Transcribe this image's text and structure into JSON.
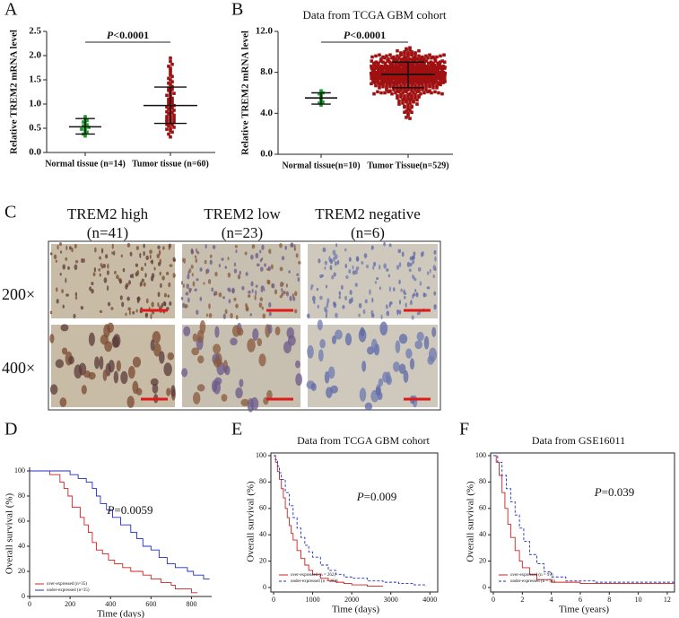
{
  "chart_data": [
    {
      "type": "dot",
      "panel_label": "A",
      "ylabel": "Relative TREM2 mRNA level",
      "categories": [
        "Normal tissue (n=14)",
        "Tumor tissue (n=60)"
      ],
      "groups": [
        {
          "color": "#1e9a2a",
          "mean": 0.53,
          "sd_range": [
            0.38,
            0.7
          ],
          "values": [
            0.34,
            0.38,
            0.42,
            0.45,
            0.48,
            0.5,
            0.52,
            0.55,
            0.57,
            0.6,
            0.63,
            0.66,
            0.7,
            0.74
          ]
        },
        {
          "color": "#a01010",
          "mean": 0.97,
          "sd_range": [
            0.6,
            1.35
          ],
          "values": [
            0.32,
            0.38,
            0.42,
            0.45,
            0.48,
            0.5,
            0.52,
            0.55,
            0.57,
            0.58,
            0.6,
            0.62,
            0.63,
            0.65,
            0.67,
            0.68,
            0.7,
            0.72,
            0.74,
            0.75,
            0.77,
            0.8,
            0.82,
            0.84,
            0.85,
            0.87,
            0.9,
            0.92,
            0.94,
            0.95,
            0.97,
            1.0,
            1.02,
            1.05,
            1.07,
            1.1,
            1.12,
            1.15,
            1.18,
            1.2,
            1.22,
            1.25,
            1.28,
            1.3,
            1.33,
            1.36,
            1.4,
            1.43,
            1.46,
            1.5,
            1.53,
            1.57,
            1.6,
            1.65,
            1.7,
            1.74,
            1.78,
            1.82,
            1.88,
            1.95
          ]
        }
      ],
      "ylim": [
        0,
        2.5
      ],
      "yticks": [
        {
          "value": 0,
          "label": "0.0"
        },
        {
          "value": 0.5,
          "label": "0.5"
        },
        {
          "value": 1,
          "label": "1.0"
        },
        {
          "value": 1.5,
          "label": "1.5"
        },
        {
          "value": 2,
          "label": "2.0"
        },
        {
          "value": 2.5,
          "label": "2.5"
        }
      ],
      "p_symbol": "P",
      "p_text": "<0.0001"
    },
    {
      "type": "dot",
      "panel_label": "B",
      "title": "Data from TCGA GBM cohort",
      "ylabel": "Relative TREM2 mRNA level",
      "categories": [
        "Normal tissue(n=10)",
        "Tumor Tissue(n=529)"
      ],
      "groups": [
        {
          "color": "#1e9a2a",
          "mean": 5.5,
          "sd_range": [
            4.9,
            6.0
          ],
          "values": [
            4.8,
            5.0,
            5.1,
            5.3,
            5.4,
            5.6,
            5.8,
            5.9,
            6.0,
            6.2
          ]
        },
        {
          "color": "#a01010",
          "mean": 7.8,
          "sd_range": [
            6.5,
            9.0
          ],
          "values": [
            7.8,
            8.2,
            6.9,
            9.1,
            7.4,
            8.6,
            5.9,
            7.1,
            8.9,
            7.6,
            8.4,
            6.5,
            9.5,
            7.9,
            8.1,
            7.2,
            6.1,
            8.8,
            7.7,
            9.3,
            7.0,
            8.3,
            5.4,
            7.5,
            9.8,
            8.0,
            6.7,
            7.3,
            8.5,
            6.3,
            9.0,
            7.8,
            4.6,
            8.7,
            7.6,
            6.8,
            9.6,
            8.2,
            7.4,
            5.7,
            8.6,
            7.1,
            9.2,
            6.6,
            8.0,
            7.9,
            10.1,
            7.3,
            6.0,
            8.4,
            7.5,
            8.9,
            6.4,
            7.7,
            8.3,
            5.2,
            9.4,
            7.0,
            8.1,
            6.9,
            8.7,
            7.2,
            9.9,
            7.6,
            6.2,
            8.5,
            7.8,
            4.1,
            8.0,
            7.4,
            6.8,
            9.1,
            7.9,
            8.2,
            5.8,
            7.3,
            8.6,
            9.7,
            7.1,
            6.5,
            8.3,
            7.0,
            8.8,
            6.0,
            9.3,
            7.6,
            8.1,
            5.5,
            7.8,
            10.3,
            7.4,
            8.5,
            6.7,
            9.0,
            7.2,
            8.0,
            4.9,
            8.7,
            7.5,
            6.3,
            9.5,
            7.9,
            8.2,
            6.6,
            7.1,
            8.9,
            5.6,
            7.7,
            9.2,
            8.4,
            6.9,
            8.6,
            7.3,
            9.8,
            7.0,
            5.0,
            8.3,
            7.6,
            6.4,
            8.8,
            7.8,
            9.1,
            6.1,
            8.0,
            7.5,
            9.6,
            7.2,
            8.5,
            3.6,
            7.9,
            8.2,
            6.8,
            9.4,
            7.4,
            8.7,
            5.3,
            7.7,
            8.1,
            6.6,
            9.0,
            7.1,
            8.4,
            10.0,
            7.6,
            6.2,
            8.9,
            7.3,
            8.0,
            5.9,
            7.8,
            9.3,
            7.0,
            8.6,
            6.5,
            7.9,
            8.3,
            4.4,
            7.5,
            9.7,
            8.1,
            6.7,
            8.8,
            7.2,
            9.1,
            7.6,
            5.7,
            8.4,
            7.0,
            8.5,
            6.9,
            8.0,
            7.4,
            9.5,
            6.3,
            8.2,
            7.8,
            10.2,
            7.1,
            5.1,
            8.6,
            7.7,
            9.0,
            6.8,
            8.3,
            7.3,
            8.9,
            6.0,
            7.9,
            9.4,
            7.5,
            8.5,
            6.4,
            7.8,
            9.2,
            7.0,
            8.1,
            5.5,
            8.7,
            7.4,
            6.7,
            9.8,
            7.6,
            8.4,
            6.1,
            7.2,
            9.0,
            7.9,
            4.7,
            8.2,
            7.3,
            6.6,
            8.7,
            7.5,
            9.3,
            8.0,
            5.8,
            7.1,
            8.6,
            9.6,
            7.7,
            8.1,
            7.0,
            8.9,
            6.5,
            7.8,
            9.1,
            4.0,
            8.3,
            7.4,
            6.8,
            7.9,
            9.4,
            6.2,
            8.5,
            7.6,
            8.0,
            5.6,
            7.2,
            10.4,
            8.8,
            7.3,
            8.2,
            6.9,
            9.7,
            7.5,
            8.4,
            6.3,
            7.8,
            5.2,
            9.0,
            8.6,
            7.1,
            9.2,
            6.7,
            8.1,
            7.7,
            4.8,
            8.9,
            7.0,
            6.4,
            9.5,
            7.4,
            8.3,
            6.0,
            7.9,
            8.7,
            7.2,
            5.4,
            9.1,
            7.6,
            6.8,
            8.5,
            7.3,
            9.9,
            8.0,
            6.1,
            7.7,
            8.4,
            3.8,
            7.5,
            8.2,
            7.0,
            9.3,
            6.6,
            8.8,
            7.6,
            5.9,
            8.1,
            9.6,
            7.1,
            7.8,
            8.6,
            6.4,
            9.0,
            7.4,
            8.3,
            5.0,
            7.9,
            8.7,
            6.9,
            9.2,
            7.5,
            8.0,
            6.2,
            7.7,
            9.4,
            7.3,
            4.5,
            8.5,
            8.1,
            6.7,
            8.9,
            7.1,
            9.7,
            7.8,
            5.7,
            8.2,
            7.4,
            6.5,
            8.6,
            8.4,
            7.2,
            9.1,
            6.8,
            8.0,
            7.6,
            10.0,
            7.0,
            5.3,
            8.3,
            7.5,
            9.3,
            6.3,
            8.7,
            7.9,
            8.1,
            6.0,
            7.3,
            9.5,
            7.7,
            8.8,
            6.6,
            7.6,
            9.0,
            7.1,
            8.4,
            5.6,
            8.2,
            7.8,
            6.1,
            9.6,
            7.4,
            8.5,
            6.4,
            7.0,
            9.2,
            7.9,
            4.2,
            8.0,
            7.2,
            6.9,
            8.3,
            7.7,
            9.4,
            8.6,
            5.9,
            7.5,
            8.1,
            9.8,
            7.3,
            8.0,
            7.1,
            8.7,
            6.7,
            7.6,
            9.0,
            4.6,
            8.4,
            7.8,
            6.5,
            7.6,
            9.5,
            6.0,
            8.2,
            7.3,
            8.8,
            5.5,
            7.0,
            10.2,
            8.5,
            7.2,
            8.0,
            6.8,
            9.6,
            7.9,
            8.3,
            6.2,
            7.7,
            5.1,
            9.1,
            8.9,
            7.3,
            9.3,
            6.5,
            8.1,
            7.4,
            4.9,
            8.6,
            7.1,
            6.3,
            9.7,
            7.8,
            8.2,
            6.1,
            7.5,
            8.5,
            7.0,
            5.8,
            9.2,
            7.6,
            6.6,
            8.4,
            7.2,
            9.8,
            8.0,
            6.0,
            7.9,
            8.7,
            3.5,
            7.4,
            8.3,
            7.1,
            9.0,
            6.9,
            8.9,
            7.7,
            5.7,
            8.1,
            9.4,
            7.0,
            7.7,
            8.6,
            6.3,
            9.1,
            7.5,
            8.2,
            5.2,
            7.8,
            8.8,
            6.7,
            9.4,
            7.6,
            8.0,
            6.4,
            7.3,
            9.5,
            7.1,
            4.3,
            8.4,
            8.2,
            6.8,
            8.7,
            7.4,
            9.9,
            7.9,
            5.4,
            8.5,
            7.2,
            6.6,
            8.9,
            8.1,
            7.5,
            9.2,
            6.2,
            8.3,
            7.8,
            10.1,
            7.0,
            5.6,
            8.0,
            7.4,
            9.0,
            6.5,
            8.6,
            7.7,
            8.4,
            6.1,
            7.6,
            9.3,
            7.9,
            8.7,
            6.9,
            7.3,
            9.5,
            7.1,
            8.2,
            5.3,
            8.8,
            7.5,
            6.0,
            9.1,
            7.7,
            8.5,
            6.7,
            7.4,
            9.6,
            7.8,
            4.1,
            8.1,
            7.2,
            6.5,
            8.3,
            7.6,
            9.2,
            8.6,
            5.9,
            7.0,
            8.0,
            9.7,
            7.8,
            8.4,
            7.3,
            9.0,
            6.8,
            7.9,
            8.5,
            4.7,
            8.2,
            7.1
          ]
        }
      ],
      "ylim": [
        0,
        12
      ],
      "yticks": [
        {
          "value": 0,
          "label": "0.0"
        },
        {
          "value": 4,
          "label": "4.0"
        },
        {
          "value": 8,
          "label": "8.0"
        },
        {
          "value": 12,
          "label": "12.0"
        }
      ],
      "p_symbol": "P",
      "p_text": "<0.0001"
    },
    {
      "type": "km",
      "panel_label": "D",
      "xlabel": "Time (days)",
      "ylabel": "Overall survival (%)",
      "frame": false,
      "p_symbol": "P",
      "p_text": "=0.0059",
      "xlim": [
        0,
        900
      ],
      "xticks": [
        0,
        200,
        400,
        600,
        800
      ],
      "ylim": [
        0,
        100
      ],
      "yticks": [
        0,
        20,
        40,
        60,
        80,
        100
      ],
      "series": [
        {
          "name": "over-expressed (n=35)",
          "color": "#d02020",
          "dashed": false,
          "x": [
            0,
            100,
            150,
            170,
            190,
            210,
            250,
            270,
            290,
            310,
            330,
            360,
            390,
            420,
            460,
            500,
            560,
            600,
            650,
            700,
            720,
            800,
            830
          ],
          "values": [
            100,
            97,
            91,
            86,
            80,
            71,
            63,
            57,
            51,
            43,
            37,
            34,
            29,
            26,
            23,
            20,
            17,
            14,
            11,
            9,
            6,
            3,
            3
          ]
        },
        {
          "name": "under-expressed (n=35)",
          "color": "#2030c0",
          "dashed": false,
          "x": [
            0,
            200,
            240,
            280,
            310,
            330,
            350,
            380,
            410,
            450,
            500,
            530,
            560,
            600,
            640,
            680,
            720,
            780,
            810,
            860,
            890
          ],
          "values": [
            100,
            97,
            94,
            91,
            86,
            80,
            74,
            69,
            63,
            57,
            51,
            46,
            40,
            37,
            31,
            26,
            23,
            20,
            17,
            14,
            14
          ]
        }
      ]
    },
    {
      "type": "km",
      "panel_label": "E",
      "title": "Data from TCGA GBM cohort",
      "xlabel": "Time (days)",
      "ylabel": "Overall survival (%)",
      "frame": true,
      "p_symbol": "P",
      "p_text": "=0.009",
      "xlim": [
        0,
        4200
      ],
      "xticks": [
        0,
        1000,
        2000,
        3000,
        4000
      ],
      "ylim": [
        0,
        100
      ],
      "yticks": [
        0,
        20,
        40,
        60,
        80,
        100
      ],
      "series": [
        {
          "name": "over-expressed (n = 262)",
          "color": "#d02020",
          "dashed": false,
          "x": [
            0,
            50,
            100,
            150,
            200,
            250,
            300,
            350,
            400,
            450,
            500,
            600,
            700,
            800,
            900,
            1000,
            1200,
            1400,
            1600,
            1800,
            2000,
            2400,
            2800
          ],
          "values": [
            100,
            95,
            88,
            82,
            75,
            68,
            60,
            53,
            47,
            41,
            36,
            28,
            22,
            17,
            13,
            10,
            7,
            5,
            4,
            3,
            2,
            1,
            1
          ]
        },
        {
          "name": "under-expressed (n = 262)",
          "color": "#2030c0",
          "dashed": true,
          "x": [
            0,
            50,
            100,
            150,
            200,
            300,
            400,
            500,
            600,
            700,
            800,
            900,
            1000,
            1200,
            1400,
            1600,
            1800,
            2000,
            2400,
            2800,
            3200,
            3600,
            3900
          ],
          "values": [
            100,
            97,
            92,
            87,
            82,
            72,
            62,
            53,
            45,
            38,
            32,
            27,
            23,
            17,
            13,
            10,
            8,
            7,
            5,
            4,
            3,
            2,
            1
          ]
        }
      ]
    },
    {
      "type": "km",
      "panel_label": "F",
      "title": "Data from GSE16011",
      "xlabel": "Time (years)",
      "ylabel": "Overall survival (%)",
      "frame": true,
      "p_symbol": "P",
      "p_text": "=0.039",
      "xlim": [
        0,
        12.5
      ],
      "xticks": [
        0,
        2,
        4,
        6,
        8,
        10,
        12
      ],
      "ylim": [
        0,
        100
      ],
      "yticks": [
        0,
        20,
        40,
        60,
        80,
        100
      ],
      "series": [
        {
          "name": "over-expressed (n = 97)",
          "color": "#d02020",
          "dashed": false,
          "x": [
            0,
            0.2,
            0.4,
            0.6,
            0.8,
            1.0,
            1.2,
            1.5,
            1.8,
            2.0,
            2.5,
            3.0,
            4.0,
            6.0,
            12.5
          ],
          "values": [
            100,
            95,
            85,
            72,
            60,
            48,
            38,
            28,
            20,
            15,
            10,
            6,
            4,
            3,
            3
          ]
        },
        {
          "name": "under-expressed (n = 56)",
          "color": "#2030c0",
          "dashed": true,
          "x": [
            0,
            0.3,
            0.6,
            0.9,
            1.2,
            1.5,
            1.8,
            2.1,
            2.5,
            3.0,
            3.5,
            4,
            5,
            7,
            12.5
          ],
          "values": [
            100,
            95,
            85,
            75,
            65,
            55,
            45,
            35,
            25,
            18,
            12,
            8,
            5,
            4,
            4
          ]
        }
      ]
    }
  ],
  "image_panel": {
    "panel_label": "C",
    "columns": [
      {
        "title": "TREM2 high",
        "n": "(n=41)"
      },
      {
        "title": "TREM2 low",
        "n": "(n=23)"
      },
      {
        "title": "TREM2 negative",
        "n": "(n=6)"
      }
    ],
    "row_labels": [
      "200×",
      "400×"
    ]
  }
}
